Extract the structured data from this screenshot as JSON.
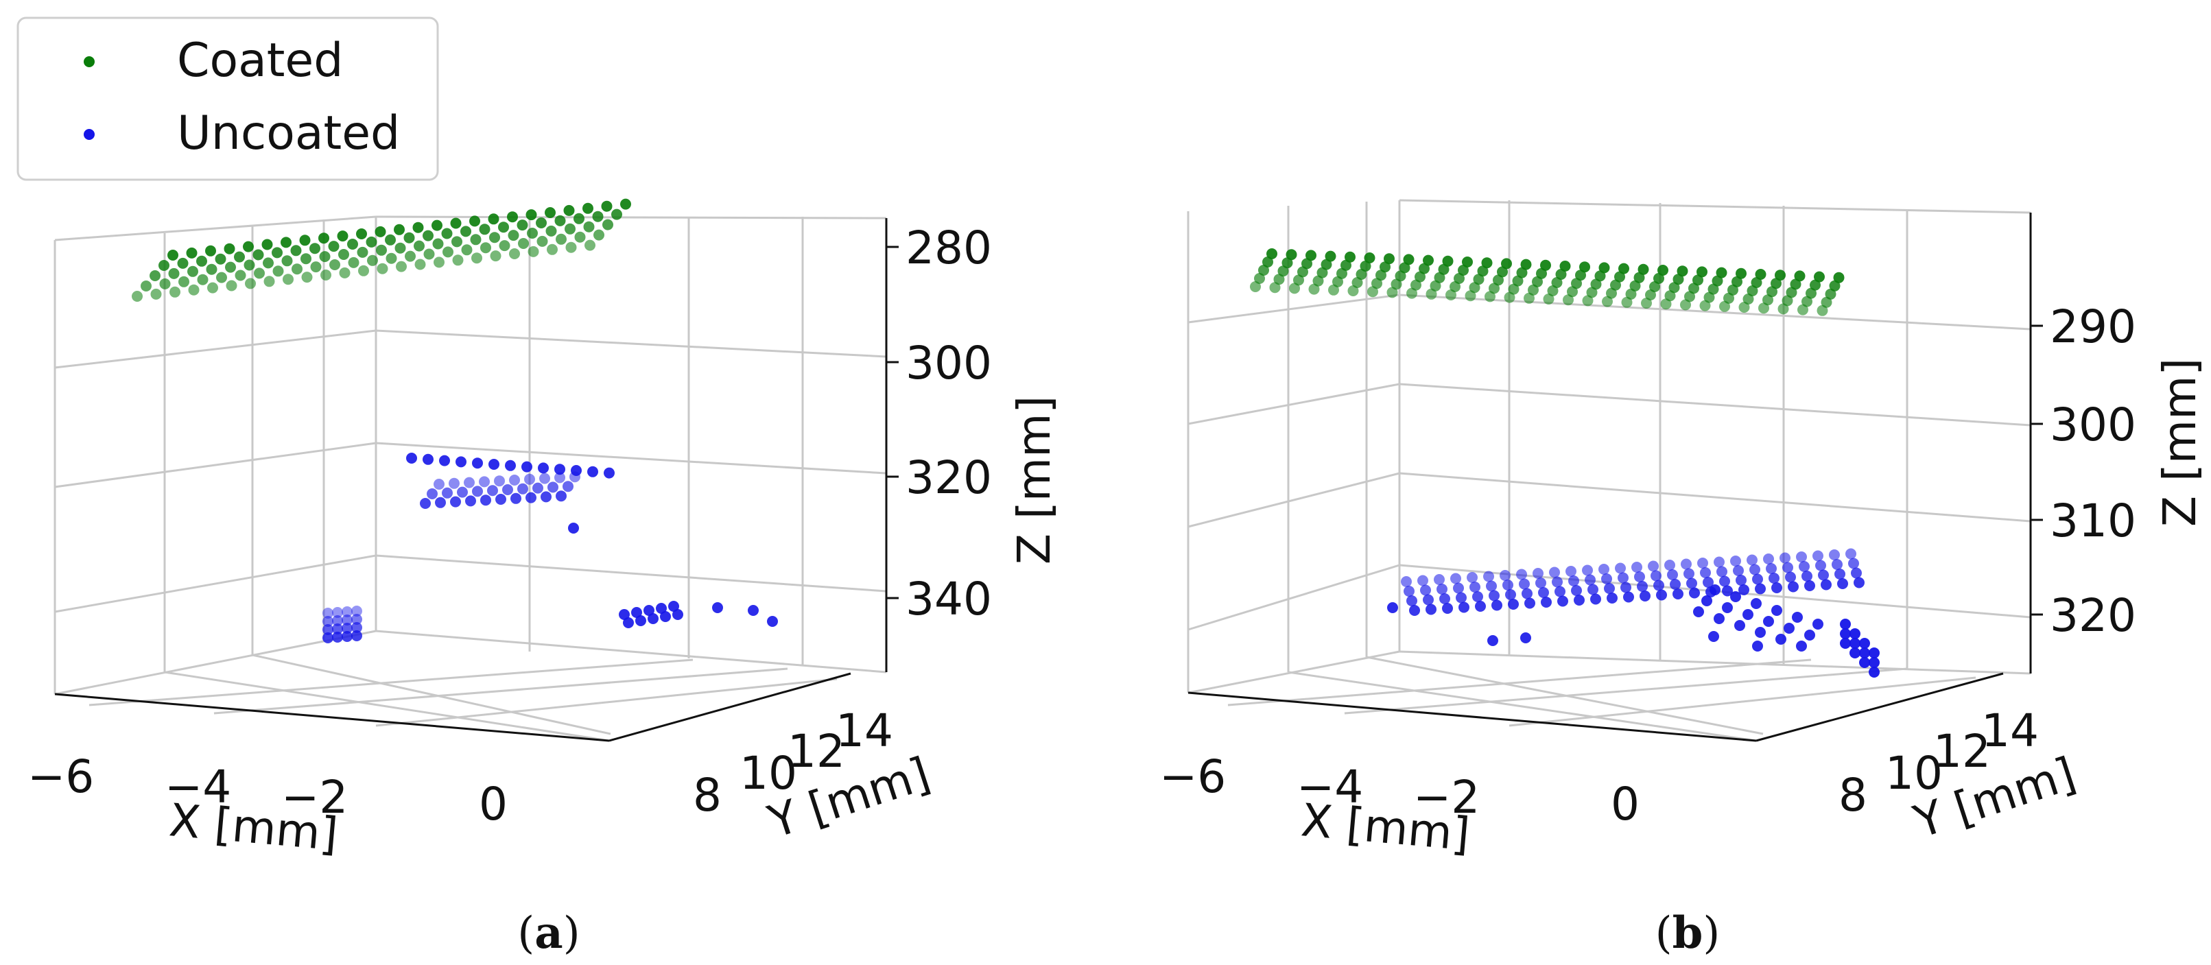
{
  "legend": {
    "items": [
      {
        "label": "Coated",
        "color": "#0a7d0a"
      },
      {
        "label": "Uncoated",
        "color": "#1515e8"
      }
    ]
  },
  "chart_data": [
    {
      "type": "scatter",
      "subtitle": "(a)",
      "caption_letter": "a",
      "xlabel": "X [mm]",
      "ylabel": "Y [mm]",
      "zlabel": "Z [mm]",
      "x_ticks": [
        "−6",
        "−4",
        "−2",
        "0"
      ],
      "y_ticks": [
        "8",
        "10",
        "12",
        "14"
      ],
      "z_ticks": [
        "280",
        "300",
        "320",
        "340"
      ],
      "z_tick_values": [
        280,
        300,
        320,
        340
      ],
      "zlim": [
        275,
        350
      ],
      "series": [
        {
          "name": "Coated",
          "color": "#0a7d0a",
          "approx_z": 285,
          "approx_x_range": [
            -7,
            1
          ],
          "approx_y_range": [
            8,
            14
          ]
        },
        {
          "name": "Uncoated",
          "color": "#1515e8",
          "approx_z": [
            322,
            342
          ],
          "approx_x_range": [
            -5,
            1
          ],
          "approx_y_range": [
            8,
            14
          ]
        }
      ]
    },
    {
      "type": "scatter",
      "subtitle": "(b)",
      "caption_letter": "b",
      "xlabel": "X [mm]",
      "ylabel": "Y [mm]",
      "zlabel": "Z [mm]",
      "x_ticks": [
        "−6",
        "−4",
        "−2",
        "0"
      ],
      "y_ticks": [
        "8",
        "10",
        "12",
        "14"
      ],
      "z_ticks": [
        "290",
        "300",
        "310",
        "320"
      ],
      "z_tick_values": [
        290,
        300,
        310,
        320
      ],
      "zlim": [
        280,
        325
      ],
      "series": [
        {
          "name": "Coated",
          "color": "#0a7d0a",
          "approx_z": 283,
          "approx_x_range": [
            -7,
            1
          ],
          "approx_y_range": [
            8,
            14
          ]
        },
        {
          "name": "Uncoated",
          "color": "#1515e8",
          "approx_z": 320,
          "approx_x_range": [
            -5,
            1
          ],
          "approx_y_range": [
            8,
            14
          ]
        }
      ]
    }
  ]
}
